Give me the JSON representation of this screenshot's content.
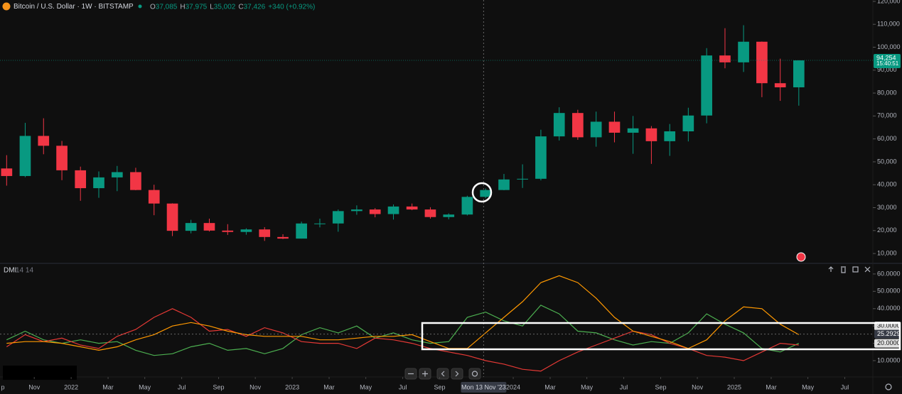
{
  "header": {
    "symbol": "Bitcoin / U.S. Dollar · 1W · BITSTAMP",
    "ohlc": [
      {
        "label": "O",
        "value": "37,085"
      },
      {
        "label": "H",
        "value": "37,975"
      },
      {
        "label": "L",
        "value": "35,002"
      },
      {
        "label": "C",
        "value": "37,426"
      }
    ],
    "change": "+340 (+0.92%)"
  },
  "chart_data": [
    {
      "type": "candlestick",
      "x": [
        2021.708,
        2021.792,
        2021.875,
        2021.958,
        2022.042,
        2022.125,
        2022.208,
        2022.292,
        2022.375,
        2022.458,
        2022.542,
        2022.625,
        2022.708,
        2022.792,
        2022.875,
        2022.958,
        2023.042,
        2023.125,
        2023.208,
        2023.292,
        2023.375,
        2023.458,
        2023.542,
        2023.625,
        2023.708,
        2023.792,
        2023.875,
        2023.958,
        2024.042,
        2024.125,
        2024.208,
        2024.292,
        2024.375,
        2024.458,
        2024.542,
        2024.625,
        2024.708,
        2024.792,
        2024.875,
        2024.958,
        2025.042,
        2025.125,
        2025.208,
        2025.292
      ],
      "open": [
        47100,
        43800,
        61300,
        57000,
        46300,
        38500,
        43200,
        45500,
        37700,
        31800,
        19900,
        23300,
        20000,
        19400,
        20500,
        17200,
        16500,
        23100,
        23100,
        28500,
        29200,
        27200,
        30500,
        29200,
        25900,
        27000,
        34700,
        37700,
        42300,
        42600,
        61100,
        71300,
        60700,
        67500,
        62700,
        64600,
        59000,
        63300,
        70200,
        96400,
        93400,
        102400,
        84300,
        82500
      ],
      "high": [
        52900,
        67000,
        69000,
        59100,
        47900,
        45800,
        48200,
        47400,
        40000,
        31900,
        24700,
        25200,
        22800,
        21000,
        21500,
        18400,
        23900,
        25200,
        29200,
        31000,
        29800,
        31400,
        31800,
        30200,
        27500,
        35200,
        38400,
        44700,
        48900,
        64000,
        73800,
        72700,
        71900,
        71900,
        70000,
        65600,
        66500,
        73600,
        99600,
        108300,
        109600,
        102500,
        95000,
        94300
      ],
      "low": [
        39600,
        43300,
        53300,
        42000,
        33000,
        34300,
        37200,
        37600,
        26700,
        17600,
        18800,
        19600,
        18100,
        18200,
        15500,
        16300,
        16500,
        21400,
        19500,
        26900,
        25800,
        24800,
        28900,
        25200,
        24900,
        26600,
        34100,
        37600,
        38600,
        41900,
        59300,
        59600,
        56600,
        58500,
        53500,
        49100,
        52600,
        58900,
        66800,
        90800,
        89200,
        78200,
        76600,
        74500
      ],
      "close": [
        43800,
        61300,
        57000,
        46300,
        38500,
        43200,
        45500,
        37700,
        31800,
        19900,
        23300,
        20000,
        19400,
        20500,
        17200,
        16500,
        23100,
        23100,
        28500,
        29200,
        27200,
        30500,
        29200,
        25900,
        27000,
        34700,
        37700,
        42300,
        42600,
        61100,
        71300,
        60700,
        67500,
        62700,
        64600,
        59000,
        63300,
        70200,
        96400,
        93400,
        102400,
        84300,
        82500,
        94254
      ],
      "last_value_label": "94,254",
      "countdown": "15:40:51",
      "up_color": "#089981",
      "down_color": "#f23645",
      "xlim": [
        2021.678,
        2025.627
      ],
      "ylim": [
        6000,
        120600
      ],
      "yticks": [
        {
          "value": 10000,
          "label": "10,000"
        },
        {
          "value": 20000,
          "label": "20,000"
        },
        {
          "value": 30000,
          "label": "30,000"
        },
        {
          "value": 40000,
          "label": "40,000"
        },
        {
          "value": 50000,
          "label": "50,000"
        },
        {
          "value": 60000,
          "label": "60,000"
        },
        {
          "value": 70000,
          "label": "70,000"
        },
        {
          "value": 80000,
          "label": "80,000"
        },
        {
          "value": 90000,
          "label": "90,000"
        },
        {
          "value": 100000,
          "label": "100,000"
        },
        {
          "value": 110000,
          "label": "110,000"
        },
        {
          "value": 120000,
          "label": "120,000"
        }
      ],
      "xticks": [
        {
          "value": 2021.667,
          "label": "p"
        },
        {
          "value": 2021.833,
          "label": "Nov"
        },
        2022,
        {
          "value": 2022.167,
          "label": "Mar"
        },
        {
          "value": 2022.333,
          "label": "May"
        },
        {
          "value": 2022.5,
          "label": "Jul"
        },
        {
          "value": 2022.667,
          "label": "Sep"
        },
        {
          "value": 2022.833,
          "label": "Nov"
        },
        2023,
        {
          "value": 2023.167,
          "label": "Mar"
        },
        {
          "value": 2023.333,
          "label": "May"
        },
        {
          "value": 2023.5,
          "label": "Jul"
        },
        {
          "value": 2023.667,
          "label": "Sep"
        },
        2024,
        {
          "value": 2024.167,
          "label": "Mar"
        },
        {
          "value": 2024.333,
          "label": "May"
        },
        {
          "value": 2024.5,
          "label": "Jul"
        },
        {
          "value": 2024.667,
          "label": "Sep"
        },
        {
          "value": 2024.833,
          "label": "Nov"
        },
        2025,
        {
          "value": 2025.167,
          "label": "Mar"
        },
        {
          "value": 2025.333,
          "label": "May"
        },
        {
          "value": 2025.5,
          "label": "Jul"
        }
      ],
      "crosshair_x": {
        "value": 2023.866,
        "label": "Mon 13 Nov '23"
      },
      "grid": false
    },
    {
      "type": "line",
      "title": "DMI",
      "subtitle": "14 14",
      "x": [
        2021.708,
        2021.792,
        2021.875,
        2021.958,
        2022.042,
        2022.125,
        2022.208,
        2022.292,
        2022.375,
        2022.458,
        2022.542,
        2022.625,
        2022.708,
        2022.792,
        2022.875,
        2022.958,
        2023.042,
        2023.125,
        2023.208,
        2023.292,
        2023.375,
        2023.458,
        2023.542,
        2023.625,
        2023.708,
        2023.792,
        2023.875,
        2023.958,
        2024.042,
        2024.125,
        2024.208,
        2024.292,
        2024.375,
        2024.458,
        2024.542,
        2024.625,
        2024.708,
        2024.792,
        2024.875,
        2024.958,
        2025.042,
        2025.125,
        2025.208,
        2025.292
      ],
      "series": [
        {
          "color": "#4caf50",
          "values": [
            22,
            27,
            22,
            20,
            22,
            20,
            21,
            16,
            13,
            14,
            18,
            20,
            16,
            17,
            14,
            17,
            25,
            29,
            26,
            30,
            23,
            26,
            22,
            20,
            21,
            35,
            38,
            33,
            30,
            42,
            37,
            27,
            26,
            22,
            19,
            21,
            20,
            26,
            37,
            31,
            26,
            17,
            15,
            20
          ]
        },
        {
          "color": "#e53935",
          "values": [
            18,
            25,
            21,
            23,
            19,
            17,
            24,
            28,
            35,
            40,
            35,
            27,
            28,
            24,
            29,
            26,
            21,
            20,
            20,
            17,
            23,
            22,
            20,
            17,
            15,
            13,
            10,
            8,
            5,
            4,
            10,
            15,
            19,
            23,
            27,
            25,
            20,
            17,
            13,
            12,
            10,
            15,
            20,
            19
          ]
        },
        {
          "color": "#ff9800",
          "values": [
            20,
            21,
            21,
            20,
            18,
            16,
            18,
            22,
            25,
            30,
            32,
            30,
            27,
            25,
            24,
            24,
            24,
            22,
            22,
            23,
            24,
            24,
            25,
            21,
            17,
            17,
            26,
            35,
            44,
            55,
            59,
            55,
            46,
            35,
            27,
            24,
            21,
            17,
            22,
            33,
            41,
            40,
            31,
            25
          ]
        }
      ],
      "xlim": [
        2021.678,
        2025.627
      ],
      "ylim": [
        1,
        65.7
      ],
      "yticks": [
        {
          "value": 10,
          "label": "10.0000"
        },
        {
          "value": 20,
          "label": "20.0000"
        },
        {
          "value": 30,
          "label": "30.0000"
        },
        {
          "value": 40,
          "label": "40.0000"
        },
        {
          "value": 50,
          "label": "50.0000"
        },
        {
          "value": 60,
          "label": "60.0000"
        }
      ],
      "crosshair_y": {
        "value": 25.2929,
        "label": "25.2929"
      },
      "grid": false
    }
  ]
}
